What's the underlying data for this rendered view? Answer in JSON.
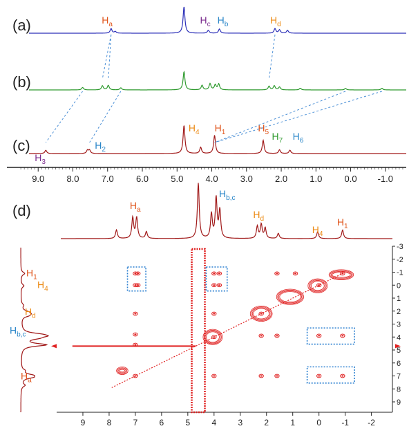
{
  "chart_data": [
    {
      "type": "line",
      "panel": "top",
      "x_axis_ppm": {
        "xlim": [
          9.9,
          -1.6
        ],
        "reversed": true,
        "ticks": [
          9.0,
          8.0,
          7.0,
          6.0,
          5.0,
          4.0,
          3.0,
          2.0,
          1.0,
          0.0,
          -1.0
        ],
        "tick_labels": [
          "9.0",
          "8.0",
          "7.0",
          "6.0",
          "5.0",
          "4.0",
          "3.0",
          "2.0",
          "1.0",
          "0.0",
          "-1.0"
        ]
      },
      "series": [
        {
          "label": "(a)",
          "color": "#2b2fb8",
          "peaks": [
            {
              "ppm": 6.9,
              "h": 0.55
            },
            {
              "ppm": 6.78,
              "h": 0.2
            },
            {
              "ppm": 4.8,
              "h": 3.2
            },
            {
              "ppm": 4.1,
              "h": 0.35
            },
            {
              "ppm": 3.78,
              "h": 0.5
            },
            {
              "ppm": 2.18,
              "h": 0.55
            },
            {
              "ppm": 2.05,
              "h": 0.4
            },
            {
              "ppm": 1.82,
              "h": 0.35
            }
          ],
          "annotations": [
            {
              "main": "H",
              "sub": "a",
              "ppm": 7.05,
              "color": "#e0541a"
            },
            {
              "main": "H",
              "sub": "c",
              "ppm": 4.22,
              "color": "#7b2d8e"
            },
            {
              "main": "H",
              "sub": "b",
              "ppm": 3.72,
              "color": "#2a86c8"
            },
            {
              "main": "H",
              "sub": "d",
              "ppm": 2.2,
              "color": "#ec8a14"
            }
          ]
        },
        {
          "label": "(b)",
          "color": "#2e9a2e",
          "peaks": [
            {
              "ppm": 7.72,
              "h": 0.3
            },
            {
              "ppm": 7.15,
              "h": 0.5
            },
            {
              "ppm": 6.98,
              "h": 0.55
            },
            {
              "ppm": 6.62,
              "h": 0.25
            },
            {
              "ppm": 4.8,
              "h": 2.2
            },
            {
              "ppm": 4.28,
              "h": 0.55
            },
            {
              "ppm": 4.05,
              "h": 0.75
            },
            {
              "ppm": 3.9,
              "h": 0.6
            },
            {
              "ppm": 3.8,
              "h": 0.7
            },
            {
              "ppm": 2.35,
              "h": 0.45
            },
            {
              "ppm": 2.2,
              "h": 0.5
            },
            {
              "ppm": 2.05,
              "h": 0.35
            },
            {
              "ppm": 1.45,
              "h": 0.2
            },
            {
              "ppm": 0.15,
              "h": 0.18
            },
            {
              "ppm": -0.9,
              "h": 0.2
            }
          ]
        },
        {
          "label": "(c)",
          "color": "#a01818",
          "peaks": [
            {
              "ppm": 8.78,
              "h": 0.4
            },
            {
              "ppm": 7.58,
              "h": 0.4
            },
            {
              "ppm": 7.52,
              "h": 0.4
            },
            {
              "ppm": 4.8,
              "h": 3.4
            },
            {
              "ppm": 4.32,
              "h": 0.75
            },
            {
              "ppm": 3.92,
              "h": 2.2
            },
            {
              "ppm": 2.52,
              "h": 1.6
            },
            {
              "ppm": 2.05,
              "h": 0.45
            },
            {
              "ppm": 1.75,
              "h": 0.4
            }
          ],
          "annotations": [
            {
              "main": "H",
              "sub": "3",
              "ppm": 8.98,
              "color": "#7b2d8e"
            },
            {
              "main": "H",
              "sub": "2",
              "ppm": 7.25,
              "color": "#2a86c8"
            },
            {
              "main": "H",
              "sub": "4",
              "ppm": 4.55,
              "color": "#ec8a14"
            },
            {
              "main": "H",
              "sub": "1",
              "ppm": 3.8,
              "color": "#e0541a"
            },
            {
              "main": "H",
              "sub": "5",
              "ppm": 2.55,
              "color": "#e0541a"
            },
            {
              "main": "H",
              "sub": "7",
              "ppm": 2.15,
              "color": "#2e9a2e"
            },
            {
              "main": "H",
              "sub": "6",
              "ppm": 1.55,
              "color": "#2a86c8"
            }
          ]
        }
      ],
      "correlation_lines": [
        {
          "from": {
            "trace": "(a)",
            "ppm": 6.9
          },
          "to": {
            "trace": "(b)",
            "ppm": 7.15
          }
        },
        {
          "from": {
            "trace": "(a)",
            "ppm": 6.9
          },
          "to": {
            "trace": "(b)",
            "ppm": 6.98
          }
        },
        {
          "from": {
            "trace": "(a)",
            "ppm": 2.18
          },
          "to": {
            "trace": "(b)",
            "ppm": 2.35
          }
        },
        {
          "from": {
            "trace": "(b)",
            "ppm": 7.72
          },
          "to": {
            "trace": "(c)",
            "ppm": 8.78
          }
        },
        {
          "from": {
            "trace": "(b)",
            "ppm": 6.62
          },
          "to": {
            "trace": "(c)",
            "ppm": 7.52
          }
        },
        {
          "from": {
            "trace": "(b)",
            "ppm": 0.15
          },
          "to": {
            "trace": "(c)",
            "ppm": 3.92
          }
        },
        {
          "from": {
            "trace": "(b)",
            "ppm": -0.9
          },
          "to": {
            "trace": "(c)",
            "ppm": 3.92
          }
        }
      ]
    },
    {
      "type": "heatmap",
      "panel": "bottom",
      "label": "(d)",
      "color": "#e02020",
      "x_ticks": [
        9,
        8,
        7,
        6,
        5,
        4,
        3,
        2,
        1,
        0,
        -1,
        -2
      ],
      "y_ticks": [
        -3,
        -2,
        -1,
        0,
        1,
        2,
        3,
        4,
        5,
        6,
        7,
        8,
        9
      ],
      "xlim": [
        10,
        -2.8
      ],
      "ylim": [
        -3,
        9.8
      ],
      "projection_peaks": [
        {
          "ppm": 7.72,
          "h": 0.25
        },
        {
          "ppm": 7.1,
          "h": 0.6
        },
        {
          "ppm": 6.95,
          "h": 0.6
        },
        {
          "ppm": 6.58,
          "h": 0.2
        },
        {
          "ppm": 4.6,
          "h": 1.6
        },
        {
          "ppm": 4.1,
          "h": 0.7
        },
        {
          "ppm": 3.92,
          "h": 1.15
        },
        {
          "ppm": 3.78,
          "h": 0.8
        },
        {
          "ppm": 2.35,
          "h": 0.35
        },
        {
          "ppm": 2.2,
          "h": 0.4
        },
        {
          "ppm": 2.05,
          "h": 0.3
        },
        {
          "ppm": 1.55,
          "h": 0.15
        },
        {
          "ppm": 0.05,
          "h": 0.2
        },
        {
          "ppm": -0.9,
          "h": 0.25
        }
      ],
      "projection_annotations": [
        {
          "main": "H",
          "sub": "a",
          "ppm": 7.0,
          "color": "#e0541a"
        },
        {
          "main": "H",
          "sub": "b,c",
          "ppm": 3.6,
          "color": "#2a86c8"
        },
        {
          "main": "H",
          "sub": "d",
          "ppm": 2.3,
          "color": "#ec8a14"
        },
        {
          "main": "H",
          "sub": "4",
          "ppm": 0.05,
          "color": "#ec8a14"
        },
        {
          "main": "H",
          "sub": "1",
          "ppm": -0.9,
          "color": "#e0541a"
        }
      ],
      "left_projection_annotations": [
        {
          "main": "H",
          "sub": "1",
          "ppm": -0.9,
          "color": "#e0541a"
        },
        {
          "main": "H",
          "sub": "4",
          "ppm": 0.0,
          "color": "#ec8a14"
        },
        {
          "main": "H",
          "sub": "d",
          "ppm": 2.2,
          "color": "#ec8a14"
        },
        {
          "main": "H",
          "sub": "b,c",
          "ppm": 3.8,
          "color": "#2a86c8"
        },
        {
          "main": "H",
          "sub": "a",
          "ppm": 7.0,
          "color": "#e0541a"
        }
      ],
      "cross_peaks": [
        {
          "x": 7.0,
          "y": -0.9
        },
        {
          "x": 6.9,
          "y": -0.9
        },
        {
          "x": 7.0,
          "y": 0.0
        },
        {
          "x": 6.9,
          "y": 0.0
        },
        {
          "x": 4.0,
          "y": -0.9
        },
        {
          "x": 3.8,
          "y": -0.9
        },
        {
          "x": 4.0,
          "y": 0.0
        },
        {
          "x": 3.8,
          "y": 0.0
        },
        {
          "x": 7.0,
          "y": 2.2
        },
        {
          "x": 7.0,
          "y": 3.8
        },
        {
          "x": 7.0,
          "y": 4.6
        },
        {
          "x": 7.0,
          "y": 7.0
        },
        {
          "x": 4.0,
          "y": 2.2
        },
        {
          "x": 4.0,
          "y": 4.0
        },
        {
          "x": 4.0,
          "y": 7.0
        },
        {
          "x": 2.2,
          "y": 2.2
        },
        {
          "x": 2.2,
          "y": 3.9
        },
        {
          "x": 2.2,
          "y": 7.0
        },
        {
          "x": 1.6,
          "y": 3.9
        },
        {
          "x": 1.6,
          "y": 7.0
        },
        {
          "x": 0.0,
          "y": 0.0
        },
        {
          "x": 0.0,
          "y": 3.9
        },
        {
          "x": 0.0,
          "y": 7.0
        },
        {
          "x": -0.9,
          "y": -0.9
        },
        {
          "x": -0.9,
          "y": 3.9
        },
        {
          "x": -0.9,
          "y": 7.0
        },
        {
          "x": 0.9,
          "y": -0.9
        },
        {
          "x": 1.6,
          "y": -0.9
        }
      ],
      "highlight_boxes": [
        {
          "x1": 7.3,
          "x2": 6.6,
          "y1": -1.4,
          "y2": 0.45
        },
        {
          "x1": 4.3,
          "x2": 3.5,
          "y1": -1.4,
          "y2": 0.45
        },
        {
          "x1": 0.45,
          "x2": -1.35,
          "y1": 3.3,
          "y2": 4.55
        },
        {
          "x1": 0.45,
          "x2": -1.35,
          "y1": 6.3,
          "y2": 7.55
        }
      ]
    }
  ]
}
